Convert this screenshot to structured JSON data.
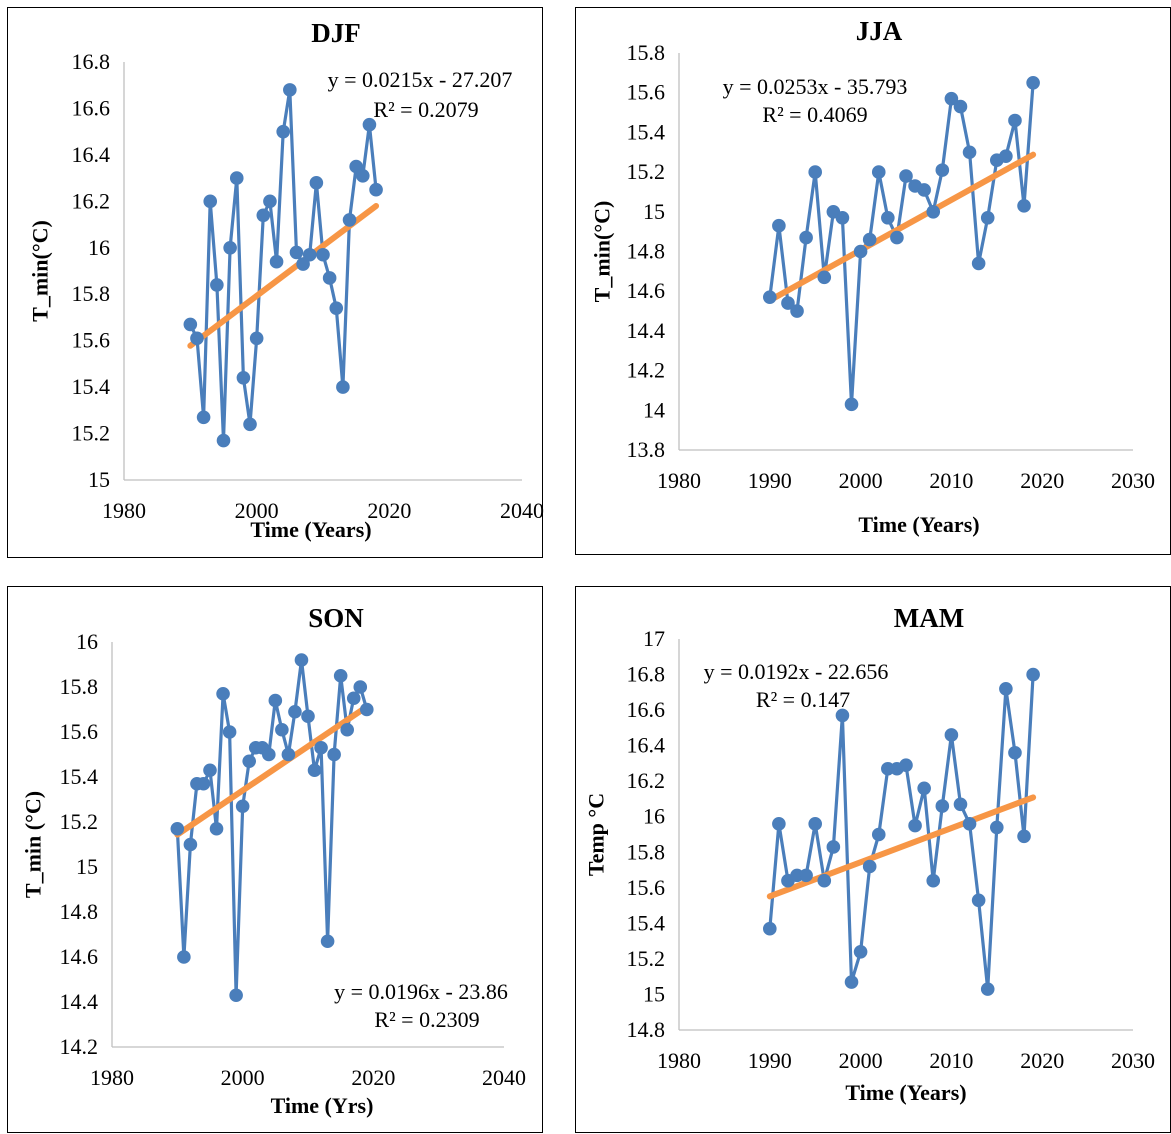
{
  "colors": {
    "series": "#4a7ebb",
    "trend": "#f79646",
    "axis": "#bfbfbf",
    "border": "#000000"
  },
  "chart_data": [
    {
      "type": "scatter",
      "title": "DJF",
      "xlabel": "Time (Years)",
      "ylabel": "T_min(°C)",
      "xlim": [
        1980,
        2040
      ],
      "ylim": [
        15,
        16.8
      ],
      "xticks": [
        "1980",
        "2000",
        "2020",
        "2040"
      ],
      "yticks": [
        "15",
        "15.2",
        "15.4",
        "15.6",
        "15.8",
        "16",
        "16.2",
        "16.4",
        "16.6",
        "16.8"
      ],
      "x": [
        1990,
        1991,
        1992,
        1993,
        1994,
        1995,
        1996,
        1997,
        1998,
        1999,
        2000,
        2001,
        2002,
        2003,
        2004,
        2005,
        2006,
        2007,
        2008,
        2009,
        2010,
        2011,
        2012,
        2013,
        2014,
        2015,
        2016,
        2017,
        2018
      ],
      "y": [
        15.67,
        15.61,
        15.27,
        16.2,
        15.84,
        15.17,
        16.0,
        16.3,
        15.44,
        15.24,
        15.61,
        16.14,
        16.2,
        15.94,
        16.5,
        16.68,
        15.98,
        15.93,
        15.97,
        16.28,
        15.97,
        15.87,
        15.74,
        15.4,
        16.12,
        16.35,
        16.31,
        16.53,
        16.25
      ],
      "trendline": {
        "slope": 0.0215,
        "intercept": -27.207,
        "x_range": [
          1990,
          2018
        ]
      },
      "equation": "y = 0.0215x - 27.207",
      "r2": "R² = 0.2079"
    },
    {
      "type": "scatter",
      "title": "JJA",
      "xlabel": "Time (Years)",
      "ylabel": "T_min(°C)",
      "xlim": [
        1980,
        2030
      ],
      "ylim": [
        13.8,
        15.8
      ],
      "xticks": [
        "1980",
        "1990",
        "2000",
        "2010",
        "2020",
        "2030"
      ],
      "yticks": [
        "13.8",
        "14",
        "14.2",
        "14.4",
        "14.6",
        "14.8",
        "15",
        "15.2",
        "15.4",
        "15.6",
        "15.8"
      ],
      "x": [
        1990,
        1991,
        1992,
        1993,
        1994,
        1995,
        1996,
        1997,
        1998,
        1999,
        2000,
        2001,
        2002,
        2003,
        2004,
        2005,
        2006,
        2007,
        2008,
        2009,
        2010,
        2011,
        2012,
        2013,
        2014,
        2015,
        2016,
        2017,
        2018,
        2019
      ],
      "y": [
        14.57,
        14.93,
        14.54,
        14.5,
        14.87,
        15.2,
        14.67,
        15.0,
        14.97,
        14.03,
        14.8,
        14.86,
        15.2,
        14.97,
        14.87,
        15.18,
        15.13,
        15.11,
        15.0,
        15.21,
        15.57,
        15.53,
        15.3,
        14.74,
        14.97,
        15.26,
        15.28,
        15.46,
        15.03,
        15.65
      ],
      "trendline": {
        "slope": 0.0253,
        "intercept": -35.793,
        "x_range": [
          1990,
          2019
        ]
      },
      "equation": "y = 0.0253x - 35.793",
      "r2": "R² = 0.4069"
    },
    {
      "type": "scatter",
      "title": "SON",
      "xlabel": "Time (Yrs)",
      "ylabel": "T_min (°C)",
      "xlim": [
        1980,
        2040
      ],
      "ylim": [
        14.2,
        16
      ],
      "xticks": [
        "1980",
        "2000",
        "2020",
        "2040"
      ],
      "yticks": [
        "14.2",
        "14.4",
        "14.6",
        "14.8",
        "15",
        "15.2",
        "15.4",
        "15.6",
        "15.8",
        "16"
      ],
      "x": [
        1990,
        1991,
        1992,
        1993,
        1994,
        1995,
        1996,
        1997,
        1998,
        1999,
        2000,
        2001,
        2002,
        2003,
        2004,
        2005,
        2006,
        2007,
        2008,
        2009,
        2010,
        2011,
        2012,
        2013,
        2014,
        2015,
        2016,
        2017,
        2018,
        2019
      ],
      "y": [
        15.17,
        14.6,
        15.1,
        15.37,
        15.37,
        15.43,
        15.17,
        15.77,
        15.6,
        14.43,
        15.27,
        15.47,
        15.53,
        15.53,
        15.5,
        15.74,
        15.61,
        15.5,
        15.69,
        15.92,
        15.67,
        15.43,
        15.53,
        14.67,
        15.5,
        15.85,
        15.61,
        15.75,
        15.8,
        15.7
      ],
      "trendline": {
        "slope": 0.0196,
        "intercept": -23.86,
        "x_range": [
          1990,
          2019
        ]
      },
      "equation": "y = 0.0196x - 23.86",
      "r2": "R² = 0.2309"
    },
    {
      "type": "scatter",
      "title": "MAM",
      "xlabel": "Time (Years)",
      "ylabel": "Temp °C",
      "xlim": [
        1980,
        2030
      ],
      "ylim": [
        14.8,
        17
      ],
      "xticks": [
        "1980",
        "1990",
        "2000",
        "2010",
        "2020",
        "2030"
      ],
      "yticks": [
        "14.8",
        "15",
        "15.2",
        "15.4",
        "15.6",
        "15.8",
        "16",
        "16.2",
        "16.4",
        "16.6",
        "16.8",
        "17"
      ],
      "x": [
        1990,
        1991,
        1992,
        1993,
        1994,
        1995,
        1996,
        1997,
        1998,
        1999,
        2000,
        2001,
        2002,
        2003,
        2004,
        2005,
        2006,
        2007,
        2008,
        2009,
        2010,
        2011,
        2012,
        2013,
        2014,
        2015,
        2016,
        2017,
        2018,
        2019
      ],
      "y": [
        15.37,
        15.96,
        15.64,
        15.67,
        15.67,
        15.96,
        15.64,
        15.83,
        16.57,
        15.07,
        15.24,
        15.72,
        15.9,
        16.27,
        16.27,
        16.29,
        15.95,
        16.16,
        15.64,
        16.06,
        16.46,
        16.07,
        15.96,
        15.53,
        15.03,
        15.94,
        16.72,
        16.36,
        15.89,
        16.8
      ],
      "trendline": {
        "slope": 0.0192,
        "intercept": -22.656,
        "x_range": [
          1990,
          2019
        ]
      },
      "equation": "y = 0.0192x - 22.656",
      "r2": "R² = 0.147"
    }
  ]
}
